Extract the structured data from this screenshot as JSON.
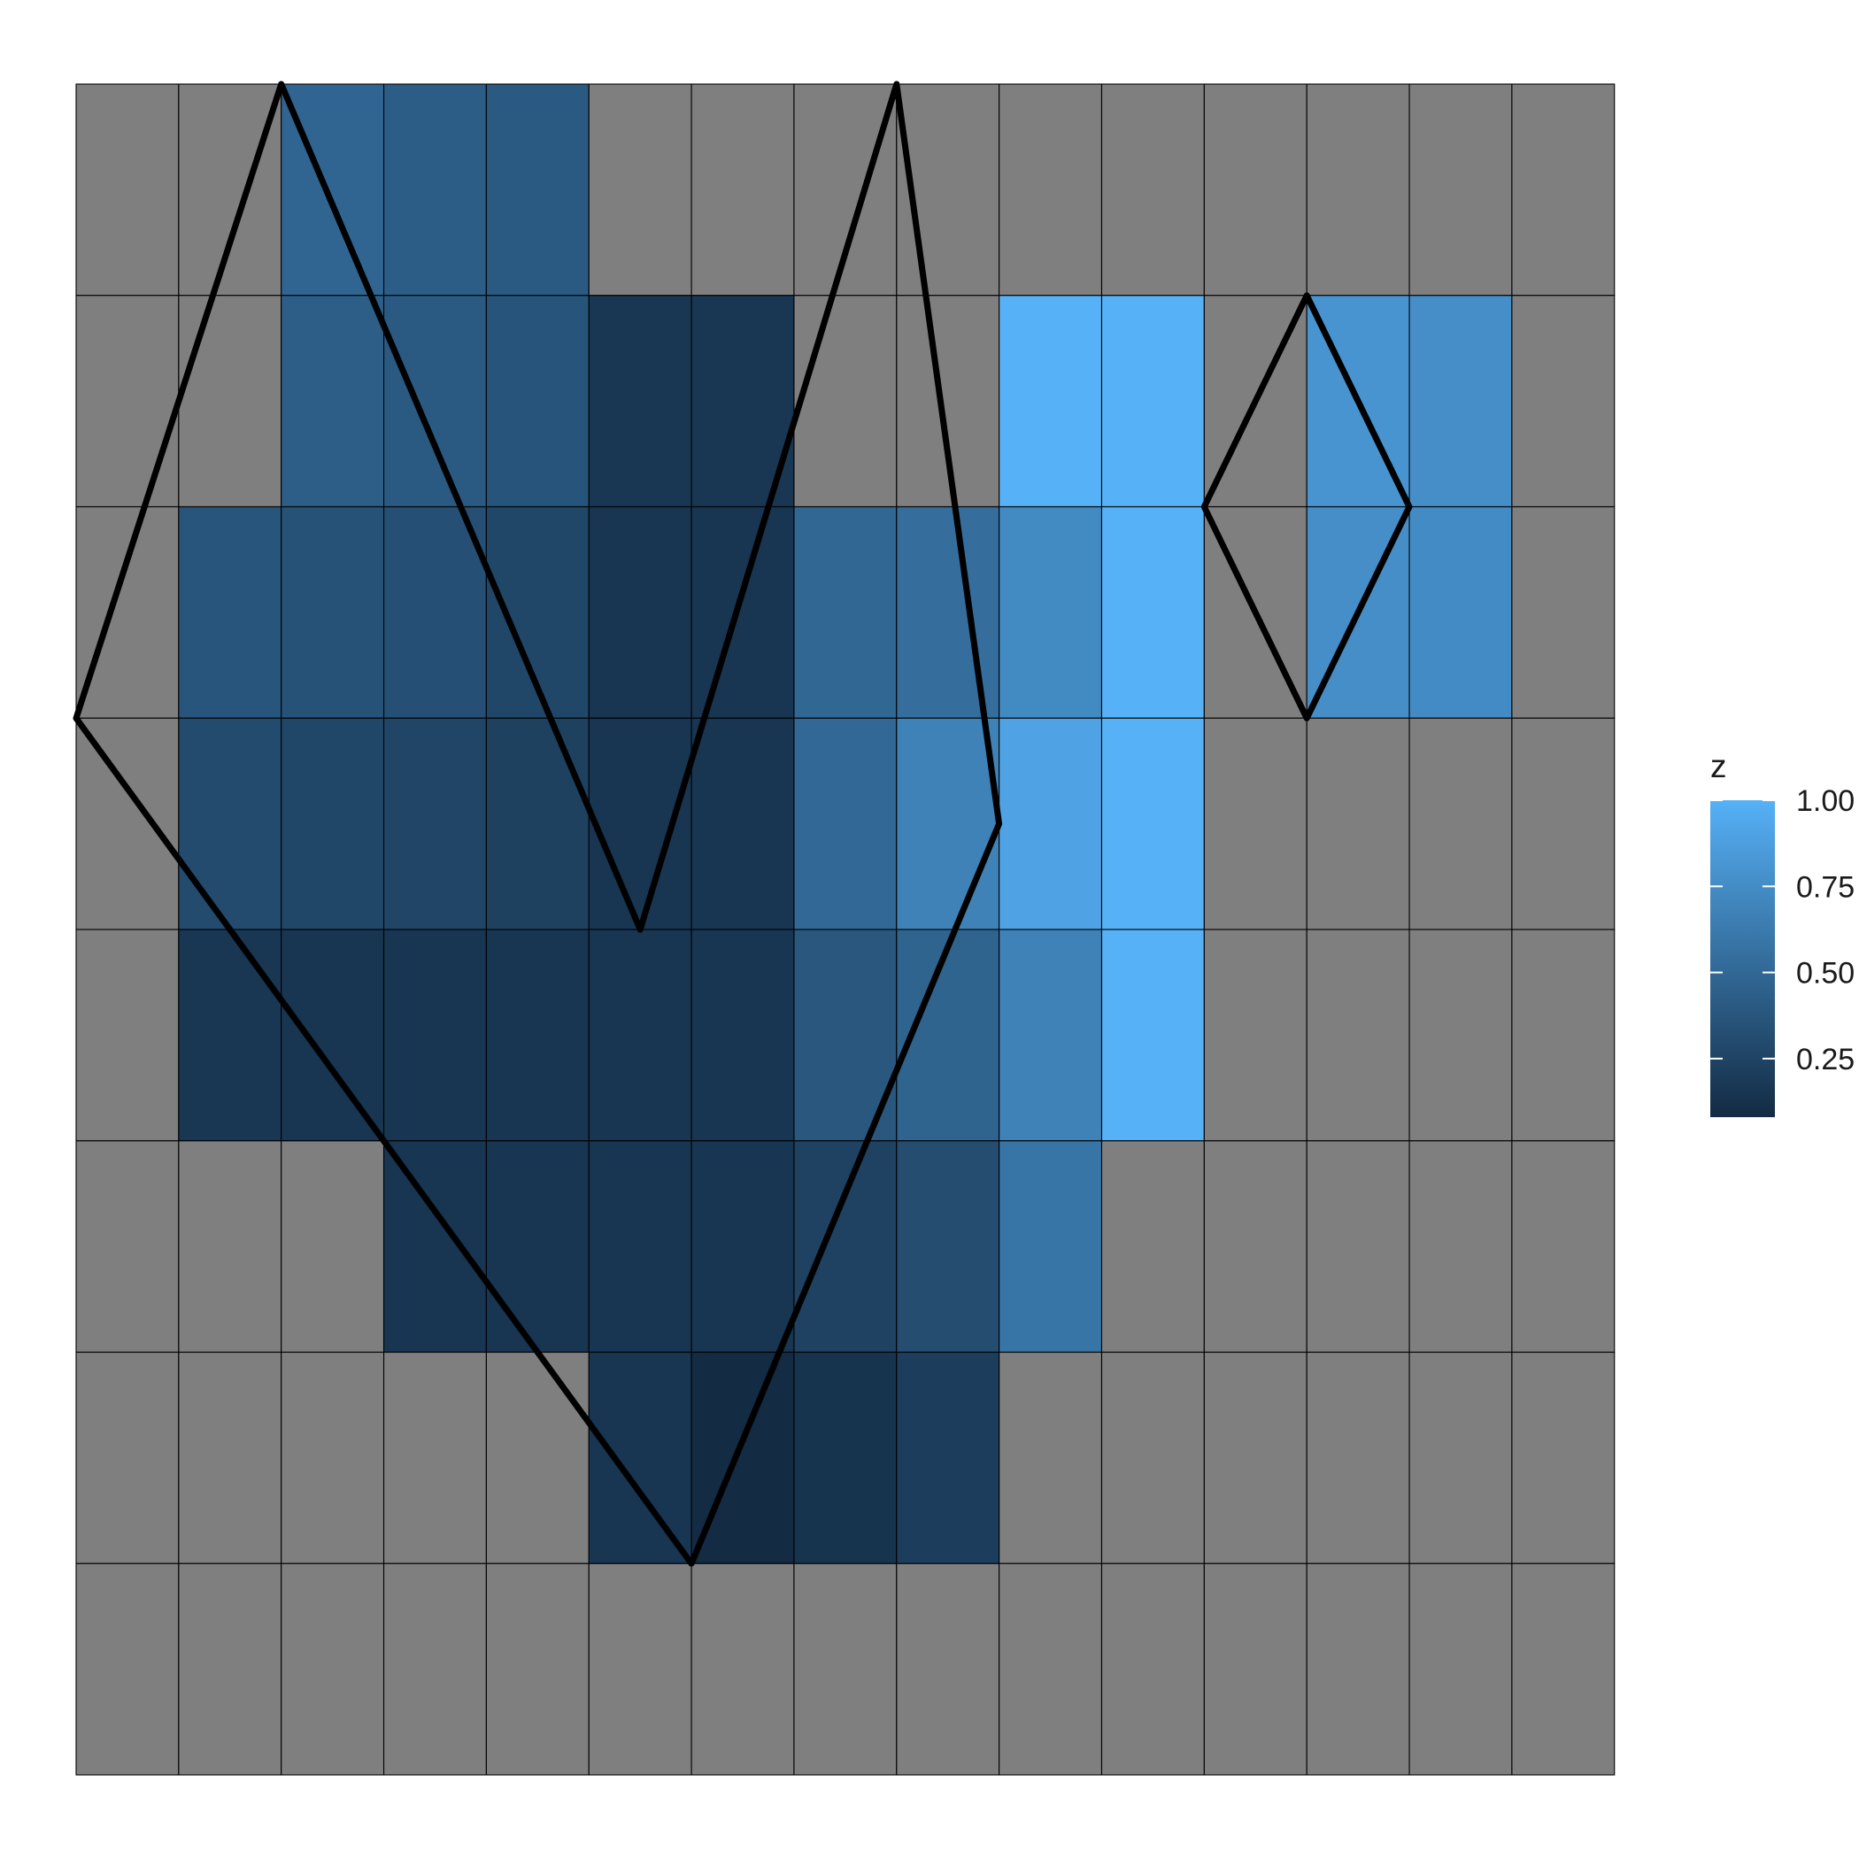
{
  "chart_data": {
    "type": "heatmap",
    "title": "",
    "xlabel": "",
    "ylabel": "",
    "grid": true,
    "na_color": "#7f7f7f",
    "colors": {
      "low": "#132B43",
      "high": "#56B1F7",
      "outline": "#000000"
    },
    "n_cols": 15,
    "n_rows": 8,
    "z_range": [
      0.08,
      1.0
    ],
    "z": [
      [
        null,
        null,
        0.48,
        0.42,
        0.4,
        null,
        null,
        null,
        null,
        null,
        null,
        null,
        null,
        null,
        null
      ],
      [
        null,
        null,
        0.43,
        0.4,
        0.36,
        0.16,
        0.16,
        null,
        null,
        1.0,
        1.0,
        null,
        0.8,
        0.76,
        null
      ],
      [
        null,
        0.37,
        0.35,
        0.33,
        0.27,
        0.15,
        0.15,
        0.49,
        0.54,
        0.73,
        1.0,
        null,
        0.76,
        0.74,
        null
      ],
      [
        null,
        0.3,
        0.27,
        0.26,
        0.23,
        0.15,
        0.15,
        0.5,
        0.68,
        0.9,
        1.0,
        null,
        null,
        null,
        null
      ],
      [
        null,
        0.16,
        0.15,
        0.15,
        0.15,
        0.15,
        0.15,
        0.38,
        0.47,
        0.68,
        1.0,
        null,
        null,
        null,
        null
      ],
      [
        null,
        null,
        null,
        0.15,
        0.15,
        0.15,
        0.15,
        0.24,
        0.31,
        0.59,
        null,
        null,
        null,
        null,
        null
      ],
      [
        null,
        null,
        null,
        null,
        null,
        0.15,
        0.08,
        0.14,
        0.21,
        null,
        null,
        null,
        null,
        null,
        null
      ],
      [
        null,
        null,
        null,
        null,
        null,
        null,
        null,
        null,
        null,
        null,
        null,
        null,
        null,
        null,
        null
      ]
    ],
    "polygons": [
      [
        [
          2,
          0
        ],
        [
          5.5,
          4
        ],
        [
          8,
          0
        ],
        [
          9,
          3.5
        ],
        [
          6,
          7
        ],
        [
          0,
          3
        ]
      ],
      [
        [
          12,
          1
        ],
        [
          13,
          2
        ],
        [
          12,
          3
        ],
        [
          11,
          2
        ]
      ]
    ],
    "legend": {
      "title": "z",
      "position": "right",
      "ticks": [
        0.25,
        0.5,
        0.75,
        1.0
      ],
      "tick_labels": [
        "0.25",
        "0.50",
        "0.75",
        "1.00"
      ]
    }
  }
}
